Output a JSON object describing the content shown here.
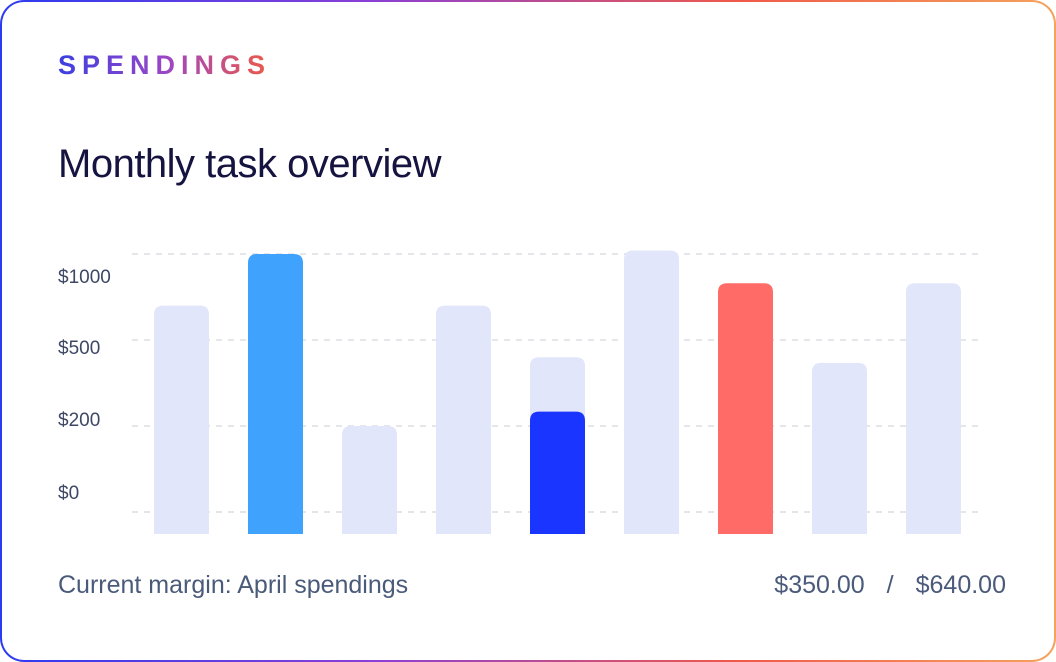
{
  "card": {
    "eyebrow": "SPENDINGS",
    "title": "Monthly task overview"
  },
  "footer": {
    "label": "Current margin: April spendings",
    "current": "$350.00",
    "separator": "/",
    "total": "$640.00"
  },
  "colors": {
    "track": "#e1e6fa",
    "blue_light": "#3fa2fd",
    "blue_dark": "#1a35ff",
    "coral": "#ff6b66",
    "grid": "#c9cdd6",
    "eyebrow_gradient": [
      "#3b3fe0",
      "#9a46c8",
      "#ee5b45"
    ]
  },
  "chart_data": {
    "type": "bar",
    "title": "Monthly task overview",
    "y_ticks": [
      "$1000",
      "$500",
      "$200",
      "$0"
    ],
    "y_tick_values": [
      1000,
      500,
      200,
      0
    ],
    "scale": "non-linear (ticks evenly spaced)",
    "ylim": [
      0,
      1000
    ],
    "grid": true,
    "bars": [
      {
        "track": 700,
        "value": null,
        "color": "track"
      },
      {
        "track": 1000,
        "value": 1000,
        "color": "blue_light"
      },
      {
        "track": 200,
        "value": null,
        "color": "track"
      },
      {
        "track": 700,
        "value": null,
        "color": "track"
      },
      {
        "track": 440,
        "value": 250,
        "color": "blue_dark"
      },
      {
        "track": 1020,
        "value": null,
        "color": "track"
      },
      {
        "track": 830,
        "value": 830,
        "color": "coral"
      },
      {
        "track": 420,
        "value": null,
        "color": "track"
      },
      {
        "track": 830,
        "value": null,
        "color": "track"
      }
    ]
  }
}
